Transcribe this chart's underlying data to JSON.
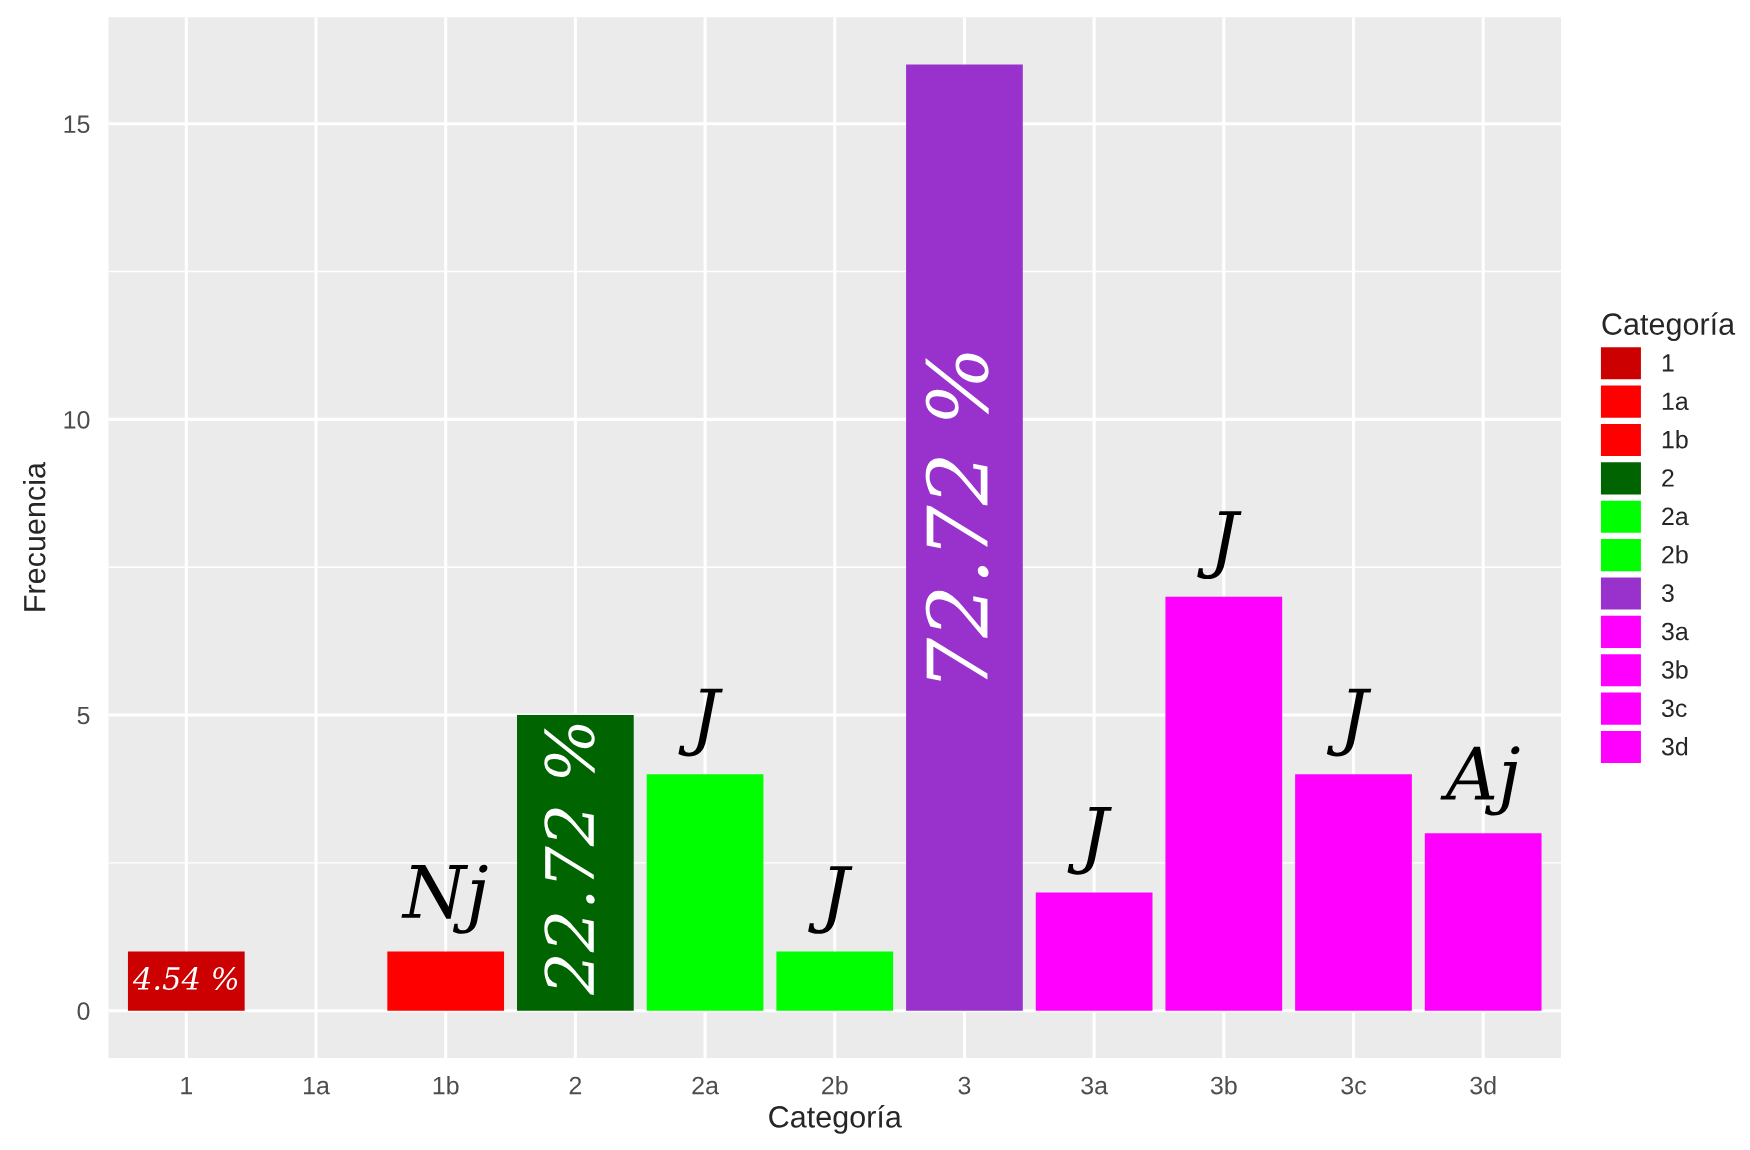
{
  "chart_data": {
    "type": "bar",
    "xlabel": "Categoría",
    "ylabel": "Frecuencia",
    "legend_title": "Categoría",
    "categories": [
      "1",
      "1a",
      "1b",
      "2",
      "2a",
      "2b",
      "3",
      "3a",
      "3b",
      "3c",
      "3d"
    ],
    "series": [
      {
        "name": "1",
        "color": "#cc0000",
        "values": [
          1,
          null,
          null,
          null,
          null,
          null,
          null,
          null,
          null,
          null,
          null
        ]
      },
      {
        "name": "1a",
        "color": "#ff0000",
        "values": [
          null,
          0,
          null,
          null,
          null,
          null,
          null,
          null,
          null,
          null,
          null
        ]
      },
      {
        "name": "1b",
        "color": "#ff0000",
        "values": [
          null,
          null,
          1,
          null,
          null,
          null,
          null,
          null,
          null,
          null,
          null
        ]
      },
      {
        "name": "2",
        "color": "#006400",
        "values": [
          null,
          null,
          null,
          5,
          null,
          null,
          null,
          null,
          null,
          null,
          null
        ]
      },
      {
        "name": "2a",
        "color": "#00ff00",
        "values": [
          null,
          null,
          null,
          null,
          4,
          null,
          null,
          null,
          null,
          null,
          null
        ]
      },
      {
        "name": "2b",
        "color": "#00ff00",
        "values": [
          null,
          null,
          null,
          null,
          null,
          1,
          null,
          null,
          null,
          null,
          null
        ]
      },
      {
        "name": "3",
        "color": "#9932cc",
        "values": [
          null,
          null,
          null,
          null,
          null,
          null,
          16,
          null,
          null,
          null,
          null
        ]
      },
      {
        "name": "3a",
        "color": "#ff00ff",
        "values": [
          null,
          null,
          null,
          null,
          null,
          null,
          null,
          2,
          null,
          null,
          null
        ]
      },
      {
        "name": "3b",
        "color": "#ff00ff",
        "values": [
          null,
          null,
          null,
          null,
          null,
          null,
          null,
          null,
          7,
          null,
          null
        ]
      },
      {
        "name": "3c",
        "color": "#ff00ff",
        "values": [
          null,
          null,
          null,
          null,
          null,
          null,
          null,
          null,
          null,
          4,
          null
        ]
      },
      {
        "name": "3d",
        "color": "#ff00ff",
        "values": [
          null,
          null,
          null,
          null,
          null,
          null,
          null,
          null,
          null,
          null,
          3
        ]
      }
    ],
    "annotations": [
      "4.54 %",
      "Nj",
      "22.72 %",
      "J",
      "J",
      "72.72 %",
      "J",
      "J",
      "J",
      "Aj"
    ],
    "ylim": [
      -0.8,
      16.8
    ],
    "yticks": [
      0,
      5,
      10,
      15
    ],
    "grid": true,
    "legend": "right"
  }
}
